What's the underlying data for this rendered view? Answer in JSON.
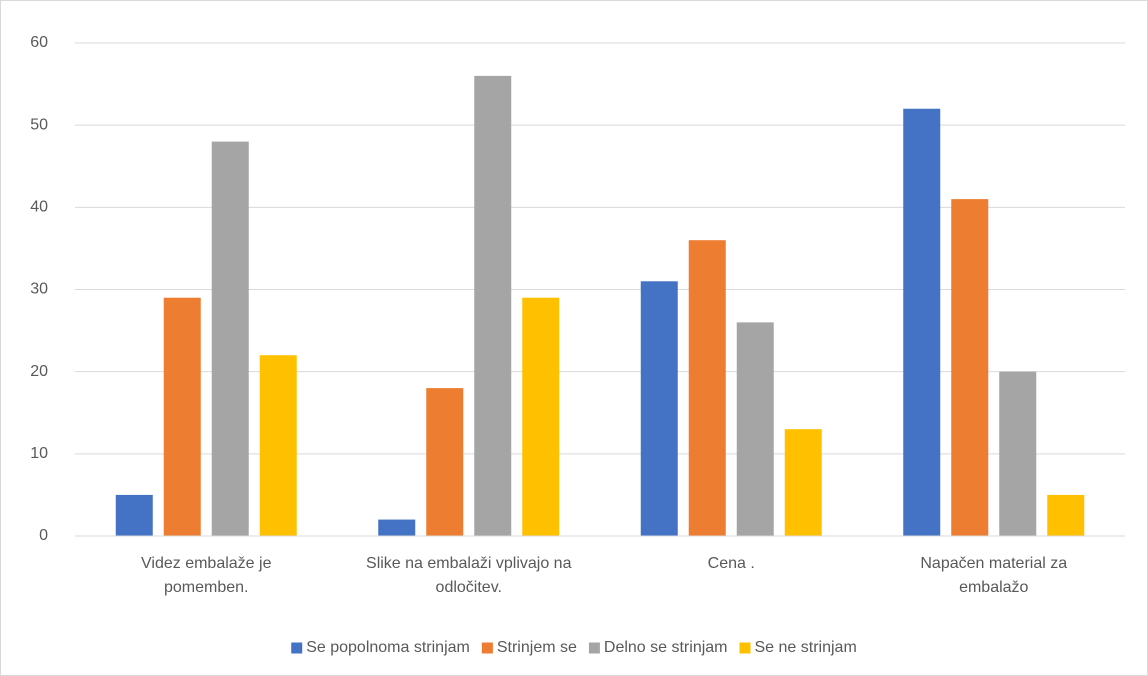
{
  "chart_data": {
    "type": "bar",
    "categories": [
      "Videz embalaže je pomemben.",
      "Slike na embalaži vplivajo na odločitev.",
      "Cena .",
      "Napačen material za embalažo"
    ],
    "series": [
      {
        "name": "Se popolnoma strinjam",
        "color": "#4472c4",
        "values": [
          5,
          2,
          31,
          52
        ]
      },
      {
        "name": "Strinjem se",
        "color": "#ed7d31",
        "values": [
          29,
          18,
          36,
          41
        ]
      },
      {
        "name": "Delno se strinjam",
        "color": "#a5a5a5",
        "values": [
          48,
          56,
          26,
          20
        ]
      },
      {
        "name": "Se ne strinjam",
        "color": "#ffc000",
        "values": [
          22,
          29,
          13,
          5
        ]
      }
    ],
    "ylim": [
      0,
      60
    ],
    "yticks": [
      0,
      10,
      20,
      30,
      40,
      50,
      60
    ],
    "grid": true,
    "legend": "bottom"
  }
}
